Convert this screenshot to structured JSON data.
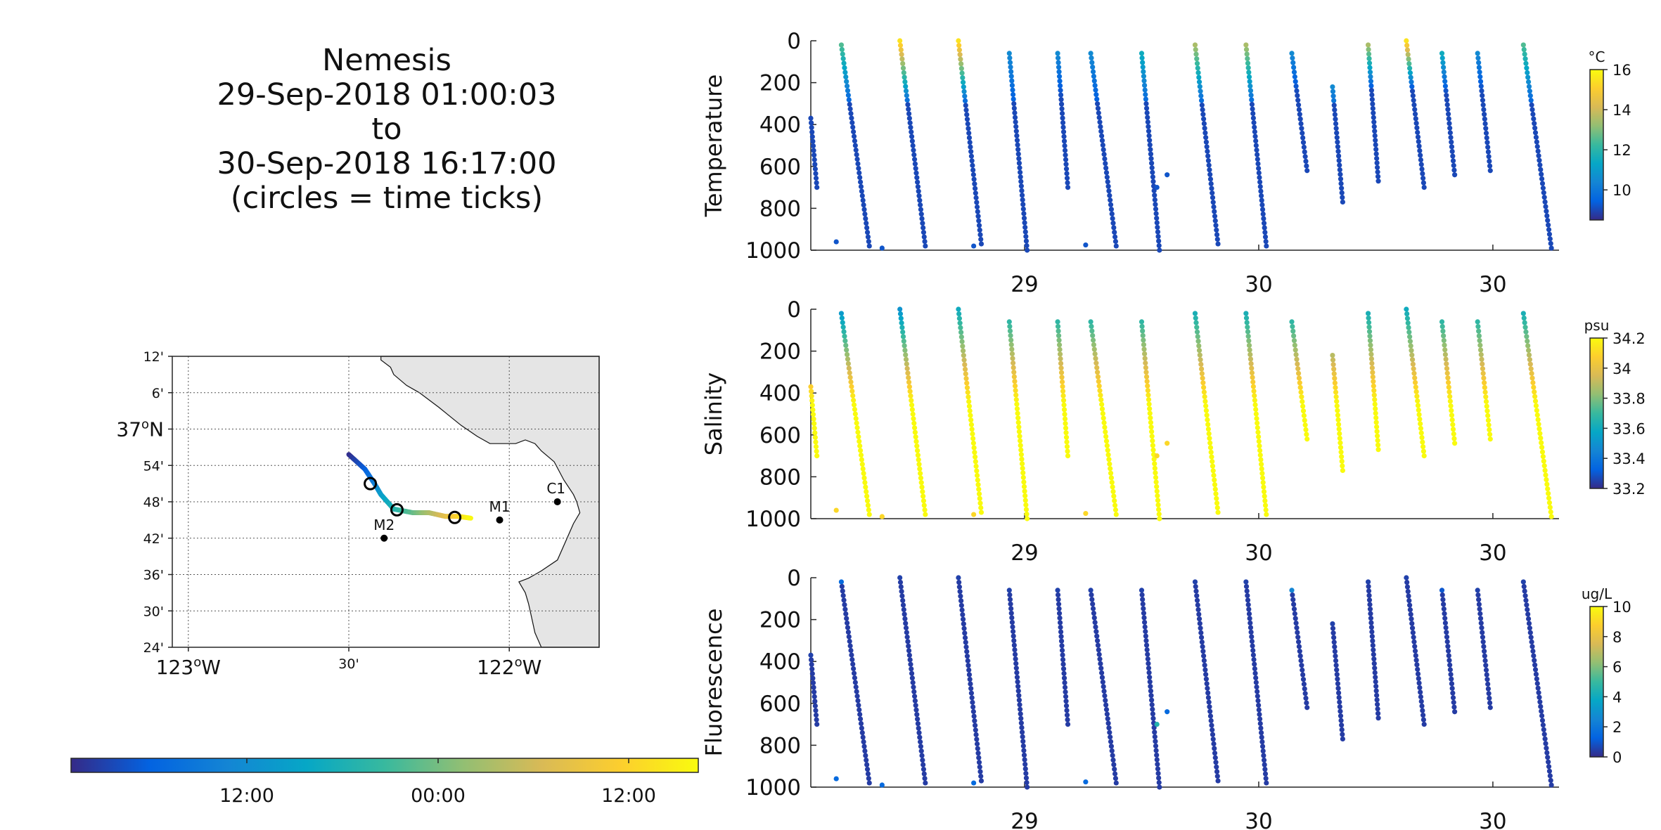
{
  "header": {
    "platform": "Nemesis",
    "start": "29-Sep-2018 01:00:03",
    "to": "to",
    "end": "30-Sep-2018 16:17:00",
    "note": "(circles = time ticks)"
  },
  "colors": {
    "parula": [
      "#352a87",
      "#0363e1",
      "#1485d4",
      "#06a7c6",
      "#38b99e",
      "#92bf73",
      "#d9ba56",
      "#fcce2e",
      "#f9fb0e"
    ],
    "land": "#e5e5e5",
    "axis": "#262626"
  },
  "map": {
    "lat_ticks": [
      "12'",
      "6'",
      "37°N",
      "54'",
      "48'",
      "42'",
      "36'",
      "30'",
      "24'"
    ],
    "lon_ticks": [
      "123°W",
      "30'",
      "122°W"
    ],
    "stations": [
      {
        "name": "C1",
        "lon": -121.85,
        "lat": 36.8
      },
      {
        "name": "M1",
        "lon": -122.03,
        "lat": 36.75
      },
      {
        "name": "M2",
        "lon": -122.39,
        "lat": 36.7
      }
    ],
    "track": {
      "lon": [
        -122.5,
        -122.45,
        -122.42,
        -122.4,
        -122.36,
        -122.3,
        -122.25,
        -122.2,
        -122.16,
        -122.12
      ],
      "lat": [
        36.93,
        36.89,
        36.85,
        36.82,
        36.78,
        36.77,
        36.77,
        36.76,
        36.76,
        36.755
      ]
    },
    "time_ticks": [
      {
        "lon": -122.433,
        "lat": 36.85
      },
      {
        "lon": -122.35,
        "lat": 36.778
      },
      {
        "lon": -122.17,
        "lat": 36.757
      }
    ],
    "time_colorbar_ticks": [
      "12:00",
      "00:00",
      "12:00"
    ]
  },
  "chart_data": [
    {
      "type": "scatter",
      "ylabel": "Temperature",
      "colorbar_unit": "°C",
      "clim": [
        8.5,
        16
      ],
      "colorbar_ticks": [
        10,
        12,
        14,
        16
      ],
      "ylim": [
        1000,
        0
      ],
      "yticks": [
        0,
        200,
        400,
        600,
        800,
        1000
      ],
      "xticks": [
        "29",
        "30",
        "30"
      ],
      "top_colors": [
        13,
        12.5,
        15.5,
        15.5,
        10.5,
        10.5,
        10.5,
        11.5,
        13.5,
        13.5,
        10.5,
        10.5,
        13.5,
        15.5,
        11.5,
        10.5,
        12.5
      ],
      "stray_points": [
        [
          0.5,
          960
        ],
        [
          1.4,
          990
        ],
        [
          3.2,
          980
        ],
        [
          5.4,
          975
        ],
        [
          7.0,
          640
        ],
        [
          6.8,
          700
        ]
      ],
      "color_model": "surface value at top of each profile, decreasing to about 9 with depth"
    },
    {
      "type": "scatter",
      "ylabel": "Salinity",
      "colorbar_unit": "psu",
      "clim": [
        33.2,
        34.2
      ],
      "colorbar_ticks": [
        33.2,
        33.4,
        33.6,
        33.8,
        34,
        34.2
      ],
      "ylim": [
        1000,
        0
      ],
      "yticks": [
        0,
        200,
        400,
        600,
        800,
        1000
      ],
      "xticks": [
        "29",
        "30",
        "30"
      ],
      "top_colors": [
        33.5,
        33.5,
        33.5,
        33.6,
        33.6,
        33.6,
        33.6,
        33.6,
        33.6,
        33.6,
        33.6,
        33.6,
        33.6,
        33.6,
        33.6,
        33.6,
        33.6
      ],
      "stray_points": [
        [
          0.5,
          960
        ],
        [
          1.4,
          990
        ],
        [
          3.2,
          980
        ],
        [
          5.4,
          975
        ],
        [
          7.0,
          640
        ],
        [
          6.8,
          700
        ]
      ],
      "color_model": "increases with depth to about 34.2"
    },
    {
      "type": "scatter",
      "ylabel": "Fluorescence",
      "colorbar_unit": "ug/L",
      "clim": [
        0,
        10
      ],
      "colorbar_ticks": [
        0,
        2,
        4,
        6,
        8,
        10
      ],
      "ylim": [
        1000,
        0
      ],
      "yticks": [
        0,
        200,
        400,
        600,
        800,
        1000
      ],
      "xticks": [
        "29",
        "30",
        "30"
      ],
      "top_colors": [
        0.5,
        1.5,
        0.5,
        0.5,
        0.5,
        0.5,
        0.5,
        0.5,
        0.5,
        0.5,
        2.5,
        0.5,
        0.5,
        0.5,
        1.0,
        0.5,
        0.5
      ],
      "stray_points": [
        [
          0.5,
          960
        ],
        [
          1.4,
          990
        ],
        [
          3.2,
          980
        ],
        [
          5.4,
          975
        ],
        [
          7.0,
          640
        ],
        [
          6.8,
          700
        ]
      ],
      "color_model": "near zero throughout"
    }
  ],
  "profiles": [
    {
      "t0": 0.0,
      "t1": 0.12,
      "z0": 370,
      "z1": 700
    },
    {
      "t0": 0.6,
      "t1": 1.15,
      "z0": 20,
      "z1": 980
    },
    {
      "t0": 1.75,
      "t1": 2.25,
      "z0": 0,
      "z1": 980
    },
    {
      "t0": 2.9,
      "t1": 3.35,
      "z0": 0,
      "z1": 970
    },
    {
      "t0": 3.9,
      "t1": 4.25,
      "z0": 60,
      "z1": 1000
    },
    {
      "t0": 4.85,
      "t1": 5.05,
      "z0": 60,
      "z1": 700
    },
    {
      "t0": 5.5,
      "t1": 6.0,
      "z0": 60,
      "z1": 980
    },
    {
      "t0": 6.5,
      "t1": 6.85,
      "z0": 60,
      "z1": 1000
    },
    {
      "t0": 7.55,
      "t1": 8.0,
      "z0": 20,
      "z1": 970
    },
    {
      "t0": 8.55,
      "t1": 8.95,
      "z0": 20,
      "z1": 980
    },
    {
      "t0": 9.45,
      "t1": 9.75,
      "z0": 60,
      "z1": 620
    },
    {
      "t0": 10.25,
      "t1": 10.45,
      "z0": 220,
      "z1": 770
    },
    {
      "t0": 10.95,
      "t1": 11.15,
      "z0": 20,
      "z1": 670
    },
    {
      "t0": 11.7,
      "t1": 12.05,
      "z0": 0,
      "z1": 700
    },
    {
      "t0": 12.4,
      "t1": 12.65,
      "z0": 60,
      "z1": 640
    },
    {
      "t0": 13.1,
      "t1": 13.35,
      "z0": 60,
      "z1": 620
    },
    {
      "t0": 14.0,
      "t1": 14.55,
      "z0": 20,
      "z1": 990
    }
  ],
  "time_axis": {
    "tmin": 0,
    "tmax": 14.7,
    "tick_positions": [
      4.2,
      8.8,
      13.4
    ]
  }
}
